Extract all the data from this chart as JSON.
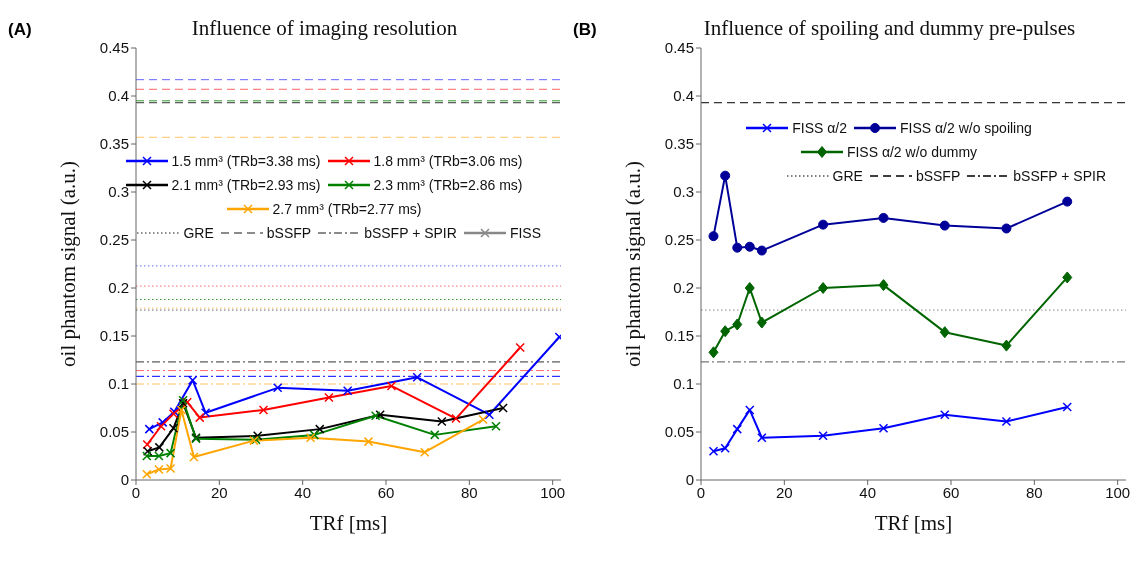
{
  "chart_data": [
    {
      "type": "line",
      "title": "Influence of imaging resolution",
      "annotations": [
        "(A)"
      ],
      "xlabel": "TRf [ms]",
      "ylabel": "oil phantom signal (a.u.)",
      "xlim": [
        0,
        102
      ],
      "xticks": [
        0,
        20,
        40,
        60,
        80,
        100
      ],
      "ylim": [
        0,
        0.45
      ],
      "yticks": [
        0,
        0.05,
        0.1,
        0.15,
        0.2,
        0.25,
        0.3,
        0.35,
        0.4,
        0.45
      ],
      "legend": "top",
      "marker": "cross",
      "line_style": "solid",
      "series": [
        {
          "name": "1.5 mm³ (TRb=3.38 ms)",
          "color": "#0000ff",
          "x": [
            3.2,
            6.4,
            9.2,
            13.6,
            16.7,
            34,
            50.8,
            67.5,
            84.8,
            101.6
          ],
          "values": [
            0.053,
            0.06,
            0.071,
            0.104,
            0.07,
            0.096,
            0.093,
            0.107,
            0.068,
            0.149
          ]
        },
        {
          "name": "1.8 mm³ (TRb=3.06 ms)",
          "color": "#ff0000",
          "x": [
            2.7,
            6,
            9,
            12.3,
            15.3,
            30.6,
            46.3,
            61.3,
            76.8,
            92.2
          ],
          "values": [
            0.037,
            0.056,
            0.069,
            0.081,
            0.065,
            0.073,
            0.086,
            0.098,
            0.064,
            0.138
          ]
        },
        {
          "name": "2.1 mm³ (TRb=2.93 ms)",
          "color": "#000000",
          "x": [
            2.8,
            5.6,
            9,
            11.3,
            14.4,
            29.2,
            44.1,
            58.6,
            73.4,
            88.1
          ],
          "values": [
            0.03,
            0.034,
            0.054,
            0.08,
            0.044,
            0.046,
            0.053,
            0.068,
            0.061,
            0.075
          ]
        },
        {
          "name": "2.3 mm³ (TRb=2.86 ms)",
          "color": "#008000",
          "x": [
            2.6,
            5.5,
            8.3,
            11.3,
            14.4,
            28.8,
            42.8,
            57.5,
            71.7,
            86.4
          ],
          "values": [
            0.025,
            0.025,
            0.028,
            0.083,
            0.043,
            0.042,
            0.047,
            0.067,
            0.047,
            0.056
          ]
        },
        {
          "name": "2.7 mm³ (TRb=2.77 ms)",
          "color": "#ffa500",
          "x": [
            2.6,
            5.5,
            8.3,
            10.9,
            13.9,
            28.3,
            41.9,
            55.8,
            69.3,
            83.3
          ],
          "values": [
            0.006,
            0.011,
            0.012,
            0.073,
            0.024,
            0.041,
            0.044,
            0.04,
            0.029,
            0.063
          ]
        },
        {
          "name": "GRE",
          "color": "#666666",
          "line_style": "dotted",
          "marker": "none"
        },
        {
          "name": "bSSFP",
          "color": "#666666",
          "line_style": "dashed",
          "marker": "none"
        },
        {
          "name": "bSSFP + SPIR",
          "color": "#666666",
          "line_style": "dashdot",
          "marker": "none"
        },
        {
          "name": "FISS",
          "color": "#888888",
          "line_style": "solid",
          "marker": "cross"
        }
      ],
      "ref_lines": [
        {
          "axis": "y",
          "value": 0.417,
          "color": "#6666ff",
          "line_style": "dashed"
        },
        {
          "axis": "y",
          "value": 0.407,
          "color": "#ff6666",
          "line_style": "dashed"
        },
        {
          "axis": "y",
          "value": 0.395,
          "color": "#339933",
          "line_style": "dashed"
        },
        {
          "axis": "y",
          "value": 0.393,
          "color": "#333333",
          "line_style": "dashed"
        },
        {
          "axis": "y",
          "value": 0.357,
          "color": "#ffc266",
          "line_style": "dashed"
        },
        {
          "axis": "y",
          "value": 0.223,
          "color": "#6666ff",
          "line_style": "dotted"
        },
        {
          "axis": "y",
          "value": 0.202,
          "color": "#ff6666",
          "line_style": "dotted"
        },
        {
          "axis": "y",
          "value": 0.188,
          "color": "#339933",
          "line_style": "dotted"
        },
        {
          "axis": "y",
          "value": 0.179,
          "color": "#ffc266",
          "line_style": "dotted"
        },
        {
          "axis": "y",
          "value": 0.177,
          "color": "#666666",
          "line_style": "dotted"
        },
        {
          "axis": "y",
          "value": 0.123,
          "color": "#333333",
          "line_style": "dashdot"
        },
        {
          "axis": "y",
          "value": 0.114,
          "color": "#ff6666",
          "line_style": "dashdot"
        },
        {
          "axis": "y",
          "value": 0.108,
          "color": "#0000ff",
          "line_style": "dashdot"
        },
        {
          "axis": "y",
          "value": 0.1,
          "color": "#ffc266",
          "line_style": "dashdot"
        }
      ]
    },
    {
      "type": "line",
      "title": "Influence of spoiling and dummy pre-pulses",
      "annotations": [
        "(B)"
      ],
      "xlabel": "TRf [ms]",
      "ylabel": "oil phantom signal (a.u.)",
      "xlim": [
        0,
        102
      ],
      "xticks": [
        0,
        20,
        40,
        60,
        80,
        100
      ],
      "ylim": [
        0,
        0.45
      ],
      "yticks": [
        0,
        0.05,
        0.1,
        0.15,
        0.2,
        0.25,
        0.3,
        0.35,
        0.4,
        0.45
      ],
      "legend": "top",
      "line_style": "solid",
      "series": [
        {
          "name": "FISS α/2",
          "color": "#0000ff",
          "marker": "cross",
          "x": [
            3,
            5.8,
            8.7,
            11.7,
            14.6,
            29.3,
            43.8,
            58.5,
            73.3,
            87.9
          ],
          "values": [
            0.03,
            0.033,
            0.053,
            0.073,
            0.044,
            0.046,
            0.054,
            0.068,
            0.061,
            0.076
          ]
        },
        {
          "name": "FISS α/2 w/o spoiling",
          "color": "#000099",
          "marker": "circle",
          "x": [
            3,
            5.8,
            8.7,
            11.7,
            14.6,
            29.3,
            43.8,
            58.5,
            73.3,
            87.9
          ],
          "values": [
            0.254,
            0.317,
            0.242,
            0.243,
            0.239,
            0.266,
            0.273,
            0.265,
            0.262,
            0.29
          ]
        },
        {
          "name": "FISS α/2 w/o dummy",
          "color": "#006400",
          "marker": "diamond",
          "x": [
            3,
            5.8,
            8.7,
            11.7,
            14.6,
            29.3,
            43.8,
            58.5,
            73.3,
            87.9
          ],
          "values": [
            0.133,
            0.155,
            0.162,
            0.2,
            0.164,
            0.2,
            0.203,
            0.154,
            0.14,
            0.211
          ]
        },
        {
          "name": "GRE",
          "color": "#555555",
          "line_style": "dotted",
          "marker": "none"
        },
        {
          "name": "bSSFP",
          "color": "#000000",
          "line_style": "dashed",
          "marker": "none"
        },
        {
          "name": "bSSFP + SPIR",
          "color": "#000000",
          "line_style": "dashdot",
          "marker": "none"
        }
      ],
      "ref_lines": [
        {
          "axis": "y",
          "value": 0.393,
          "color": "#000000",
          "line_style": "dashed"
        },
        {
          "axis": "y",
          "value": 0.177,
          "color": "#888888",
          "line_style": "dotted"
        },
        {
          "axis": "y",
          "value": 0.123,
          "color": "#555555",
          "line_style": "dashdot"
        }
      ]
    }
  ]
}
